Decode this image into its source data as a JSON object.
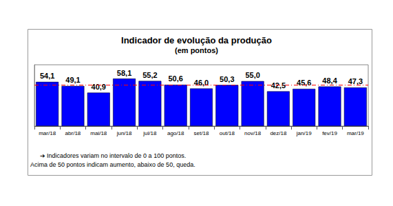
{
  "chart_data": {
    "type": "bar",
    "title": "Indicador de evolução da produção",
    "subtitle": "(em pontos)",
    "categories": [
      "mar/18",
      "abr/18",
      "mai/18",
      "jun/18",
      "jul/18",
      "ago/18",
      "set/18",
      "out/18",
      "nov/18",
      "dez/18",
      "jan/19",
      "fev/19",
      "mar/19"
    ],
    "values": [
      54.1,
      49.1,
      40.9,
      58.1,
      55.2,
      50.6,
      46.0,
      50.3,
      55.0,
      42.5,
      45.6,
      48.4,
      47.3
    ],
    "value_labels": [
      "54,1",
      "49,1",
      "40,9",
      "58,1",
      "55,2",
      "50,6",
      "46,0",
      "50,3",
      "55,0",
      "42,5",
      "45,6",
      "48,4",
      "47,3"
    ],
    "color": "#0000ff",
    "ylim": [
      0,
      75
    ],
    "reference_line": 50,
    "grid": false,
    "data_labels": true,
    "tick_labels": "x",
    "notes": [
      "➔ Indicadores variam no intervalo de 0 a 100 pontos.",
      "Acima de 50 pontos indicam aumento, abaixo de 50, queda."
    ]
  }
}
